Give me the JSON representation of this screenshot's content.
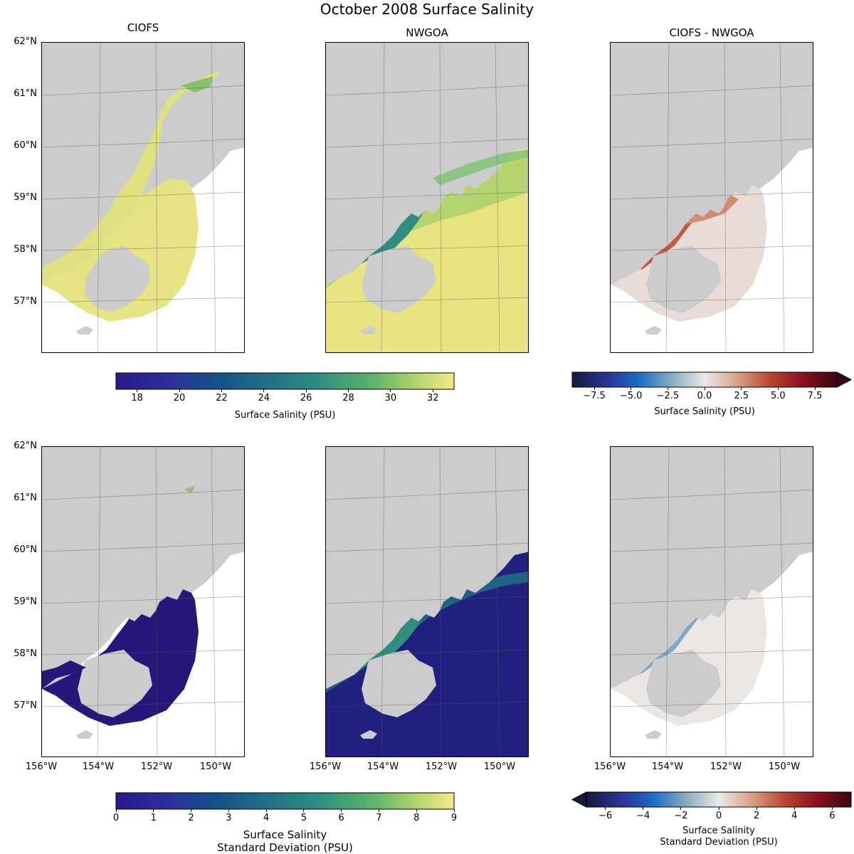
{
  "figure_title": "October 2008 Surface Salinity",
  "panels": {
    "ciofs": "CIOFS",
    "nwgoa": "NWGOA",
    "diff": "CIOFS - NWGOA"
  },
  "lat_labels": [
    "62°N",
    "61°N",
    "60°N",
    "59°N",
    "58°N",
    "57°N"
  ],
  "lon_labels": [
    "156°W",
    "154°W",
    "152°W",
    "150°W"
  ],
  "colors": {
    "land": "#cccccc",
    "ocean_blank": "#ffffff",
    "haline_low": "#2a1a8a",
    "haline_high": "#f5ea8a",
    "diff_neg": "#1a2a6c",
    "diff_zero": "#e8e4e2",
    "diff_pos": "#4a0a14"
  },
  "colorbars": {
    "mean": {
      "label": "Surface Salinity (PSU)",
      "range": [
        17,
        33
      ],
      "ticks": [
        "18",
        "20",
        "22",
        "24",
        "26",
        "28",
        "30",
        "32"
      ]
    },
    "mean_diff": {
      "label": "Surface Salinity (PSU)",
      "range": [
        -9,
        9
      ],
      "extend": "max",
      "ticks": [
        "−7.5",
        "−5.0",
        "−2.5",
        "0.0",
        "2.5",
        "5.0",
        "7.5"
      ]
    },
    "std": {
      "label_line1": "Surface Salinity",
      "label_line2": "Standard Deviation (PSU)",
      "range": [
        0,
        9
      ],
      "ticks": [
        "0",
        "1",
        "2",
        "3",
        "4",
        "5",
        "6",
        "7",
        "8",
        "9"
      ]
    },
    "std_diff": {
      "label_line1": "Surface Salinity",
      "label_line2": "Standard Deviation (PSU)",
      "range": [
        -7,
        7
      ],
      "extend": "min",
      "ticks": [
        "−6",
        "−4",
        "−2",
        "0",
        "2",
        "4",
        "6"
      ]
    }
  }
}
